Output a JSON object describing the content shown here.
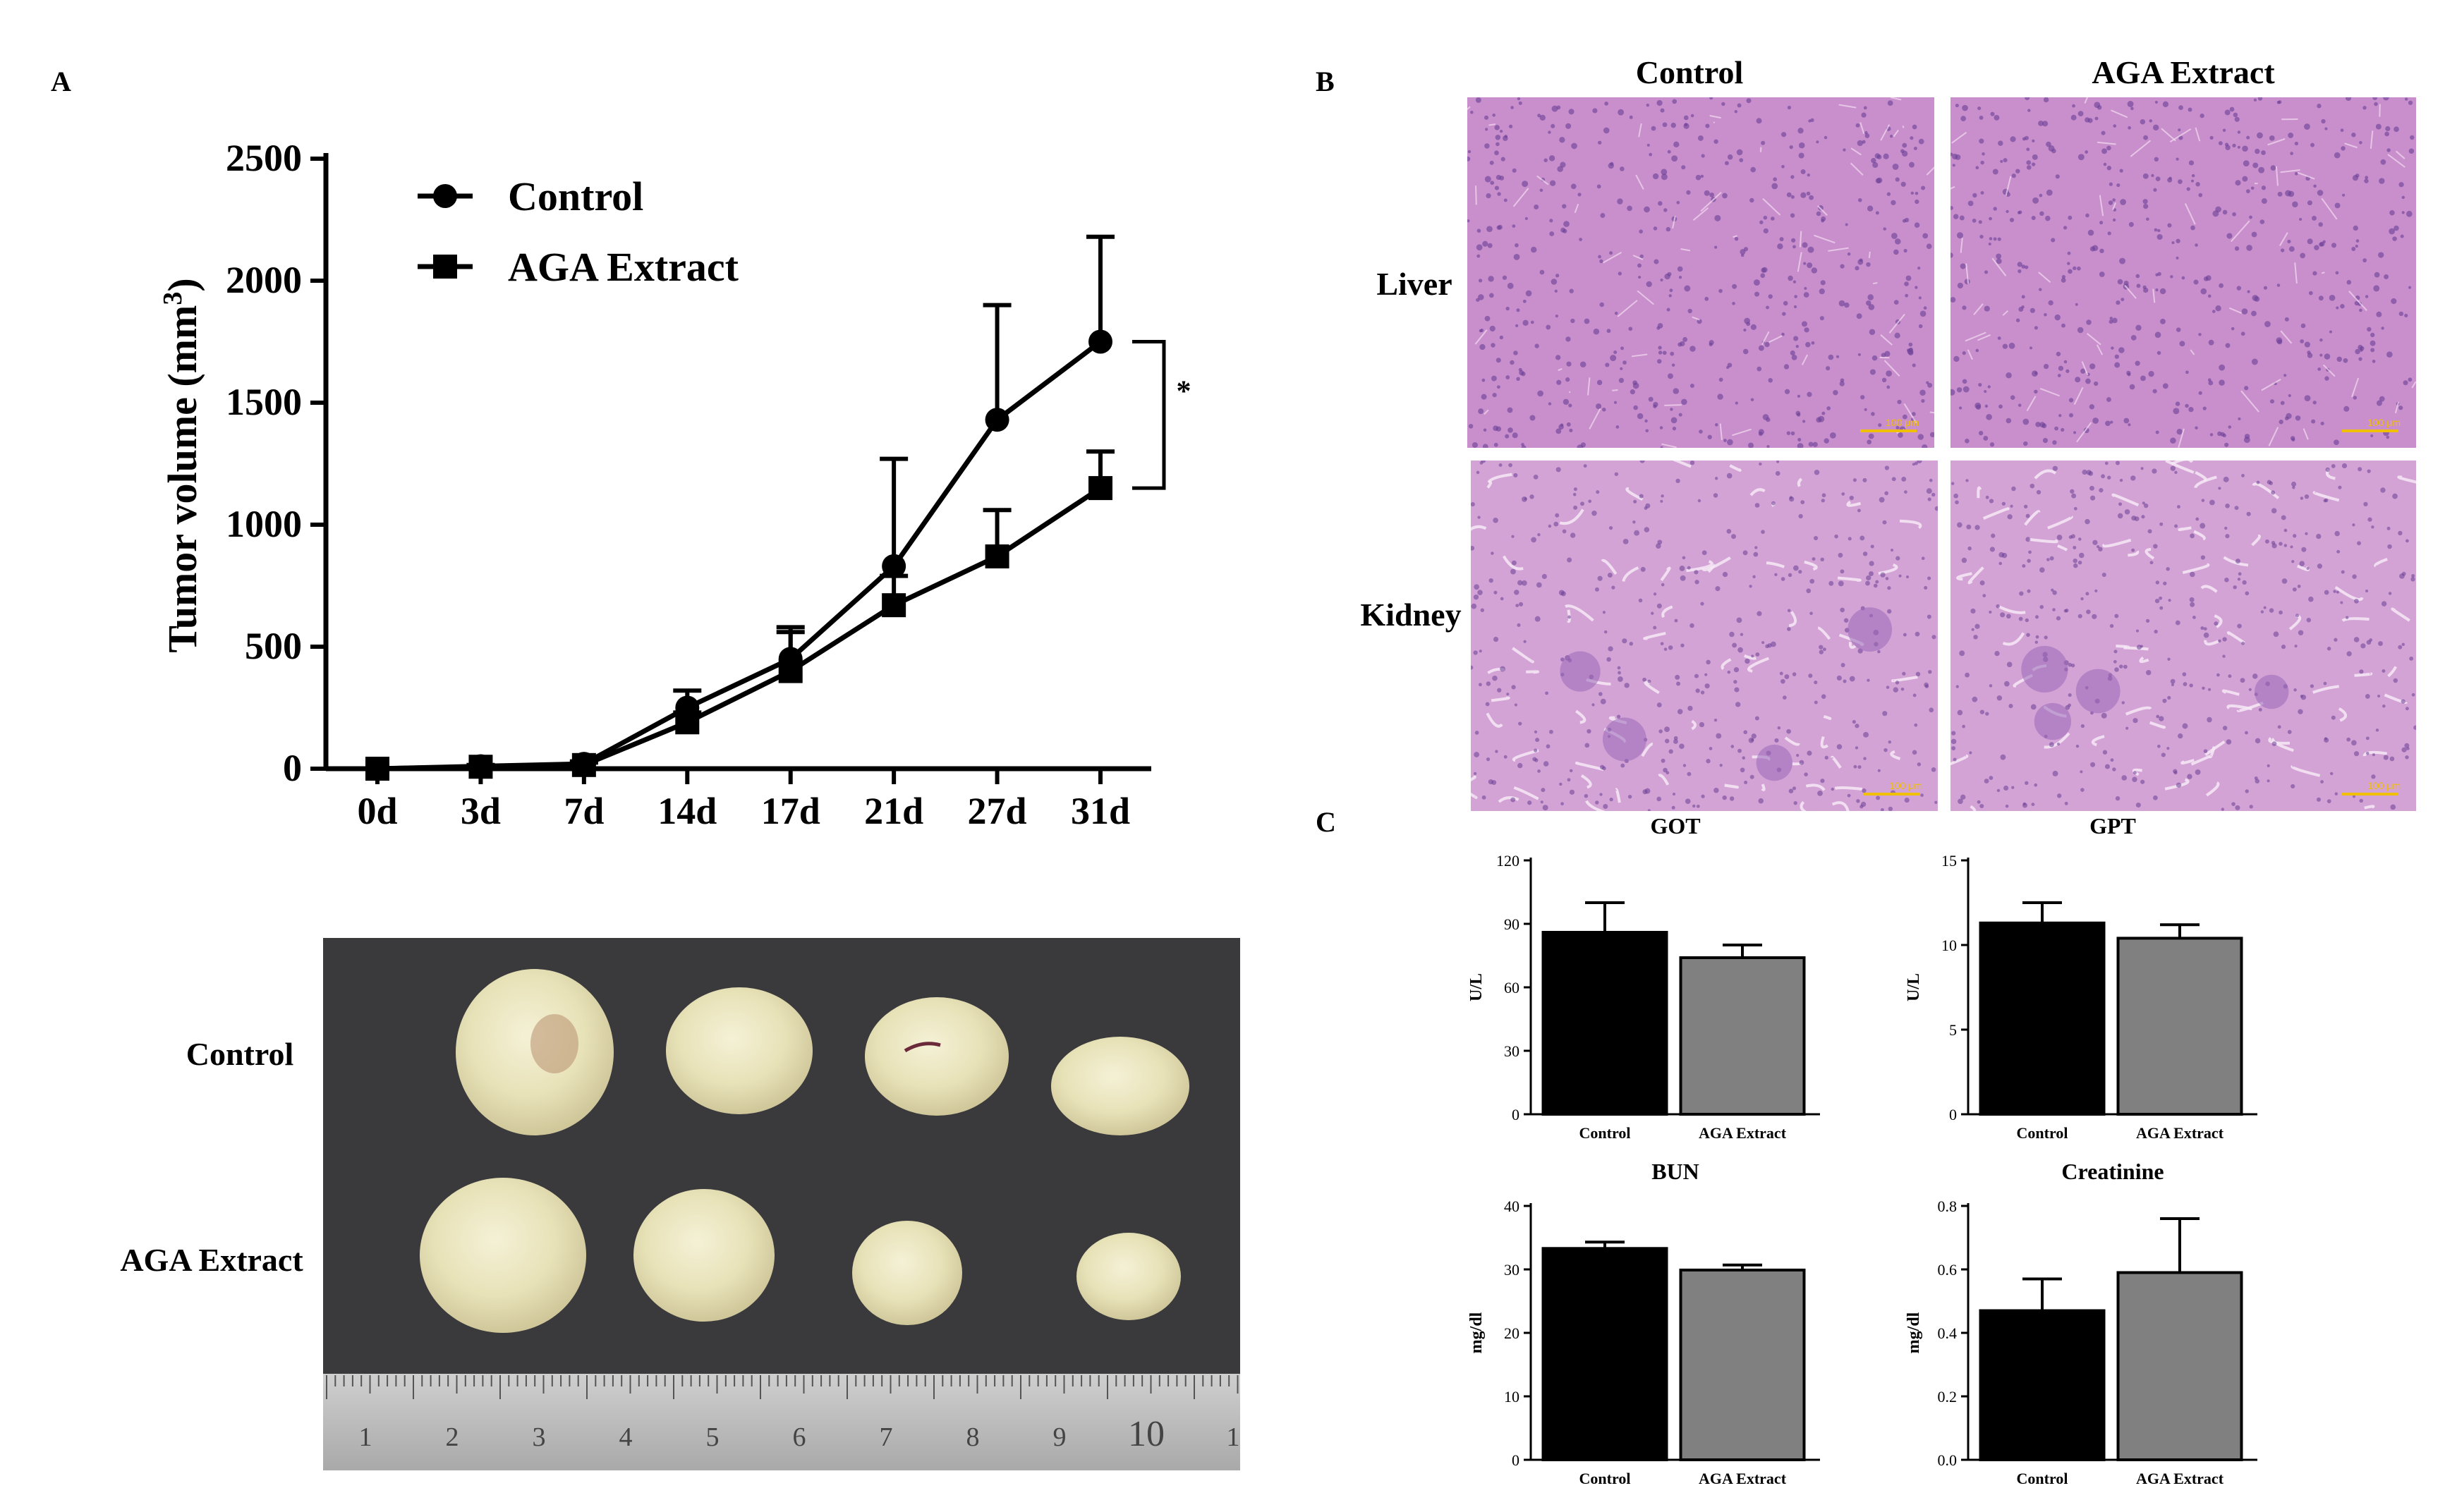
{
  "panels": {
    "a": "A",
    "b": "B",
    "c": "C"
  },
  "chart_data": [
    {
      "type": "line",
      "panel": "A",
      "title": "",
      "xlabel": "",
      "ylabel": "Tumor volume (mm3)",
      "ylabel_main": "Tumor volume (mm",
      "ylabel_sup": "3",
      "ylabel_end": ")",
      "categories": [
        "0d",
        "3d",
        "7d",
        "14d",
        "17d",
        "21d",
        "27d",
        "31d"
      ],
      "ylim": [
        0,
        2500
      ],
      "yticks": [
        0,
        500,
        1000,
        1500,
        2000,
        2500
      ],
      "legend_position": "top-left",
      "significance": "*",
      "series": [
        {
          "name": "Control",
          "marker": "circle",
          "values": [
            0,
            10,
            20,
            250,
            450,
            830,
            1430,
            1750
          ],
          "errors": [
            0,
            5,
            10,
            70,
            130,
            440,
            470,
            430
          ]
        },
        {
          "name": "AGA Extract",
          "marker": "square",
          "values": [
            0,
            8,
            15,
            190,
            400,
            670,
            870,
            1150
          ],
          "errors": [
            0,
            5,
            10,
            40,
            160,
            120,
            190,
            150
          ]
        }
      ]
    },
    {
      "type": "bar",
      "panel": "C",
      "title": "GOT",
      "ylabel": "U/L",
      "categories": [
        "Control",
        "AGA Extract"
      ],
      "values": [
        86,
        74
      ],
      "errors": [
        14,
        6
      ],
      "ylim": [
        0,
        120
      ],
      "yticks": [
        0,
        30,
        60,
        90,
        120
      ],
      "colors": [
        "#000000",
        "#808080"
      ]
    },
    {
      "type": "bar",
      "panel": "C",
      "title": "GPT",
      "ylabel": "U/L",
      "categories": [
        "Control",
        "AGA Extract"
      ],
      "values": [
        11.3,
        10.4
      ],
      "errors": [
        1.2,
        0.8
      ],
      "ylim": [
        0,
        15
      ],
      "yticks": [
        0,
        5,
        10,
        15
      ],
      "colors": [
        "#000000",
        "#808080"
      ]
    },
    {
      "type": "bar",
      "panel": "C",
      "title": "BUN",
      "ylabel": "mg/dl",
      "categories": [
        "Control",
        "AGA Extract"
      ],
      "values": [
        33.3,
        29.9
      ],
      "errors": [
        1.0,
        0.8
      ],
      "ylim": [
        0,
        40
      ],
      "yticks": [
        0,
        10,
        20,
        30,
        40
      ],
      "colors": [
        "#000000",
        "#808080"
      ]
    },
    {
      "type": "bar",
      "panel": "C",
      "title": "Creatinine",
      "ylabel": "mg/dl",
      "categories": [
        "Control",
        "AGA Extract"
      ],
      "values": [
        0.47,
        0.59
      ],
      "errors": [
        0.1,
        0.17
      ],
      "ylim": [
        0,
        0.8
      ],
      "yticks": [
        "0.0",
        "0.2",
        "0.4",
        "0.6",
        "0.8"
      ],
      "colors": [
        "#000000",
        "#808080"
      ]
    }
  ],
  "histology": {
    "col_labels": [
      "Control",
      "AGA Extract"
    ],
    "row_labels": [
      "Liver",
      "Kidney"
    ],
    "scale_label": "100 μm",
    "stain_colors": {
      "liver": "#c98fcd",
      "kidney": "#d3a3d6",
      "nucleus": "#6a3f96"
    }
  },
  "photo": {
    "row_labels": [
      "Control",
      "AGA Extract"
    ],
    "ruler_numbers": [
      "1",
      "2",
      "3",
      "4",
      "5",
      "6",
      "7",
      "8",
      "9",
      "10",
      "1"
    ],
    "background_color": "#3a3a3d"
  }
}
